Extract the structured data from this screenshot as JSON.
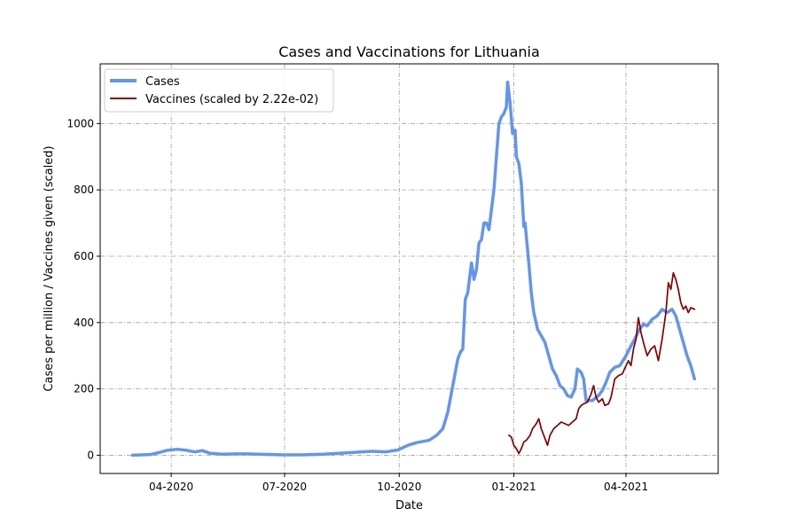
{
  "chart_data": {
    "type": "line",
    "title": "Cases and Vaccinations for Lithuania",
    "xlabel": "Date",
    "ylabel": "Cases per million / Vaccines given (scaled)",
    "xlim": [
      "2020-02-04",
      "2021-06-14"
    ],
    "ylim": [
      -55,
      1180
    ],
    "xticks": [
      {
        "date": "2020-04-01",
        "label": "04-2020"
      },
      {
        "date": "2020-07-01",
        "label": "07-2020"
      },
      {
        "date": "2020-10-01",
        "label": "10-2020"
      },
      {
        "date": "2021-01-01",
        "label": "01-2021"
      },
      {
        "date": "2021-04-01",
        "label": "04-2021"
      }
    ],
    "yticks": [
      0,
      200,
      400,
      600,
      800,
      1000
    ],
    "grid": true,
    "legend_position": "top-left",
    "series": [
      {
        "name": "Cases",
        "color": "#6495ed",
        "points": [
          [
            "2020-03-01",
            0
          ],
          [
            "2020-03-15",
            2
          ],
          [
            "2020-03-22",
            8
          ],
          [
            "2020-03-29",
            15
          ],
          [
            "2020-04-06",
            18
          ],
          [
            "2020-04-13",
            15
          ],
          [
            "2020-04-20",
            10
          ],
          [
            "2020-04-26",
            14
          ],
          [
            "2020-05-02",
            6
          ],
          [
            "2020-05-12",
            3
          ],
          [
            "2020-05-22",
            4
          ],
          [
            "2020-06-01",
            4
          ],
          [
            "2020-06-10",
            3
          ],
          [
            "2020-06-20",
            2
          ],
          [
            "2020-07-01",
            1
          ],
          [
            "2020-07-15",
            1
          ],
          [
            "2020-08-01",
            3
          ],
          [
            "2020-08-15",
            6
          ],
          [
            "2020-09-01",
            10
          ],
          [
            "2020-09-10",
            12
          ],
          [
            "2020-09-20",
            10
          ],
          [
            "2020-09-30",
            16
          ],
          [
            "2020-10-08",
            30
          ],
          [
            "2020-10-15",
            38
          ],
          [
            "2020-10-25",
            45
          ],
          [
            "2020-10-31",
            60
          ],
          [
            "2020-11-05",
            80
          ],
          [
            "2020-11-09",
            130
          ],
          [
            "2020-11-11",
            170
          ],
          [
            "2020-11-14",
            230
          ],
          [
            "2020-11-17",
            290
          ],
          [
            "2020-11-19",
            310
          ],
          [
            "2020-11-21",
            320
          ],
          [
            "2020-11-23",
            470
          ],
          [
            "2020-11-25",
            490
          ],
          [
            "2020-11-28",
            580
          ],
          [
            "2020-11-30",
            530
          ],
          [
            "2020-12-02",
            560
          ],
          [
            "2020-12-04",
            640
          ],
          [
            "2020-12-06",
            650
          ],
          [
            "2020-12-08",
            700
          ],
          [
            "2020-12-10",
            700
          ],
          [
            "2020-12-12",
            680
          ],
          [
            "2020-12-14",
            740
          ],
          [
            "2020-12-16",
            800
          ],
          [
            "2020-12-18",
            900
          ],
          [
            "2020-12-20",
            1000
          ],
          [
            "2020-12-22",
            1020
          ],
          [
            "2020-12-24",
            1030
          ],
          [
            "2020-12-26",
            1050
          ],
          [
            "2020-12-27",
            1125
          ],
          [
            "2020-12-29",
            1060
          ],
          [
            "2020-12-31",
            970
          ],
          [
            "2021-01-02",
            980
          ],
          [
            "2021-01-03",
            900
          ],
          [
            "2021-01-05",
            880
          ],
          [
            "2021-01-07",
            820
          ],
          [
            "2021-01-09",
            690
          ],
          [
            "2021-01-10",
            700
          ],
          [
            "2021-01-13",
            580
          ],
          [
            "2021-01-15",
            490
          ],
          [
            "2021-01-17",
            430
          ],
          [
            "2021-01-20",
            380
          ],
          [
            "2021-01-23",
            360
          ],
          [
            "2021-01-26",
            340
          ],
          [
            "2021-01-29",
            300
          ],
          [
            "2021-02-01",
            260
          ],
          [
            "2021-02-04",
            240
          ],
          [
            "2021-02-07",
            210
          ],
          [
            "2021-02-10",
            200
          ],
          [
            "2021-02-13",
            180
          ],
          [
            "2021-02-16",
            175
          ],
          [
            "2021-02-19",
            200
          ],
          [
            "2021-02-21",
            260
          ],
          [
            "2021-02-24",
            250
          ],
          [
            "2021-02-26",
            230
          ],
          [
            "2021-02-28",
            165
          ],
          [
            "2021-03-05",
            165
          ],
          [
            "2021-03-10",
            180
          ],
          [
            "2021-03-13",
            195
          ],
          [
            "2021-03-16",
            220
          ],
          [
            "2021-03-19",
            250
          ],
          [
            "2021-03-23",
            265
          ],
          [
            "2021-03-27",
            270
          ],
          [
            "2021-04-01",
            300
          ],
          [
            "2021-04-05",
            330
          ],
          [
            "2021-04-08",
            350
          ],
          [
            "2021-04-12",
            380
          ],
          [
            "2021-04-15",
            395
          ],
          [
            "2021-04-18",
            390
          ],
          [
            "2021-04-22",
            410
          ],
          [
            "2021-04-26",
            420
          ],
          [
            "2021-04-30",
            440
          ],
          [
            "2021-05-04",
            430
          ],
          [
            "2021-05-08",
            440
          ],
          [
            "2021-05-11",
            420
          ],
          [
            "2021-05-14",
            380
          ],
          [
            "2021-05-17",
            340
          ],
          [
            "2021-05-20",
            300
          ],
          [
            "2021-05-23",
            270
          ],
          [
            "2021-05-26",
            230
          ]
        ]
      },
      {
        "name": "Vaccines (scaled by 2.22e-02)",
        "color": "#800000",
        "points": [
          [
            "2020-12-28",
            60
          ],
          [
            "2020-12-30",
            55
          ],
          [
            "2021-01-01",
            30
          ],
          [
            "2021-01-03",
            20
          ],
          [
            "2021-01-05",
            5
          ],
          [
            "2021-01-07",
            20
          ],
          [
            "2021-01-09",
            40
          ],
          [
            "2021-01-11",
            45
          ],
          [
            "2021-01-14",
            60
          ],
          [
            "2021-01-16",
            80
          ],
          [
            "2021-01-19",
            95
          ],
          [
            "2021-01-21",
            110
          ],
          [
            "2021-01-23",
            80
          ],
          [
            "2021-01-25",
            60
          ],
          [
            "2021-01-28",
            30
          ],
          [
            "2021-01-30",
            60
          ],
          [
            "2021-02-02",
            80
          ],
          [
            "2021-02-05",
            90
          ],
          [
            "2021-02-08",
            100
          ],
          [
            "2021-02-11",
            95
          ],
          [
            "2021-02-14",
            90
          ],
          [
            "2021-02-17",
            100
          ],
          [
            "2021-02-20",
            110
          ],
          [
            "2021-02-22",
            140
          ],
          [
            "2021-02-24",
            150
          ],
          [
            "2021-02-26",
            155
          ],
          [
            "2021-03-01",
            160
          ],
          [
            "2021-03-04",
            185
          ],
          [
            "2021-03-06",
            210
          ],
          [
            "2021-03-08",
            175
          ],
          [
            "2021-03-10",
            160
          ],
          [
            "2021-03-13",
            170
          ],
          [
            "2021-03-15",
            150
          ],
          [
            "2021-03-18",
            155
          ],
          [
            "2021-03-20",
            175
          ],
          [
            "2021-03-23",
            230
          ],
          [
            "2021-03-26",
            240
          ],
          [
            "2021-03-29",
            245
          ],
          [
            "2021-04-01",
            270
          ],
          [
            "2021-04-03",
            285
          ],
          [
            "2021-04-05",
            270
          ],
          [
            "2021-04-07",
            320
          ],
          [
            "2021-04-09",
            350
          ],
          [
            "2021-04-11",
            415
          ],
          [
            "2021-04-13",
            370
          ],
          [
            "2021-04-15",
            340
          ],
          [
            "2021-04-18",
            300
          ],
          [
            "2021-04-21",
            320
          ],
          [
            "2021-04-24",
            330
          ],
          [
            "2021-04-27",
            285
          ],
          [
            "2021-04-30",
            350
          ],
          [
            "2021-05-03",
            430
          ],
          [
            "2021-05-05",
            520
          ],
          [
            "2021-05-07",
            500
          ],
          [
            "2021-05-09",
            550
          ],
          [
            "2021-05-11",
            530
          ],
          [
            "2021-05-13",
            500
          ],
          [
            "2021-05-15",
            460
          ],
          [
            "2021-05-17",
            440
          ],
          [
            "2021-05-19",
            450
          ],
          [
            "2021-05-21",
            430
          ],
          [
            "2021-05-23",
            445
          ],
          [
            "2021-05-26",
            440
          ]
        ]
      }
    ]
  }
}
